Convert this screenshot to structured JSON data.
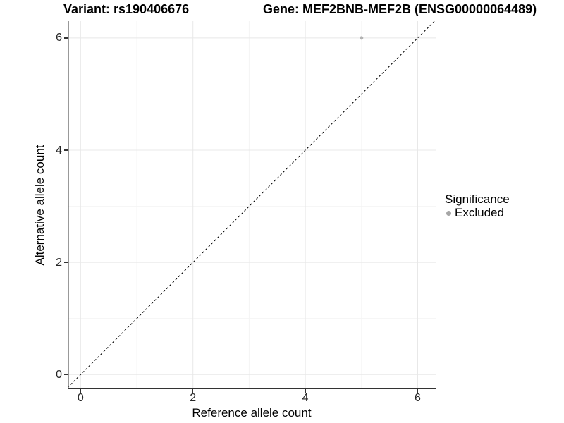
{
  "titles": {
    "variant": "Variant: rs190406676",
    "gene": "Gene: MEF2BNB-MEF2B (ENSG00000064489)"
  },
  "chart_data": {
    "type": "scatter",
    "xlabel": "Reference allele count",
    "ylabel": "Alternative allele count",
    "xlim": [
      -0.23,
      6.32
    ],
    "ylim": [
      -0.26,
      6.3
    ],
    "xticks": [
      0,
      2,
      4,
      6
    ],
    "yticks": [
      0,
      2,
      4,
      6
    ],
    "xticks_minor": [
      1,
      3,
      5
    ],
    "yticks_minor": [
      1,
      3,
      5
    ],
    "grid": true,
    "identity_line": {
      "slope": 1,
      "intercept": 0,
      "style": "dashed",
      "color": "#000000"
    },
    "series": [
      {
        "name": "Excluded",
        "color": "#b3b3b3",
        "point_radius": 2.5,
        "points": [
          [
            5,
            6
          ]
        ]
      }
    ],
    "legend": {
      "title": "Significance",
      "position": "right",
      "entries": [
        {
          "label": "Excluded",
          "color": "#a6a6a6"
        }
      ]
    }
  },
  "colors": {
    "background": "#ffffff",
    "grid_major": "#e8e8e8",
    "grid_minor": "#f4f4f4",
    "axis_line": "#333333",
    "tick_label": "#262626",
    "point": "#b3b3b3"
  }
}
